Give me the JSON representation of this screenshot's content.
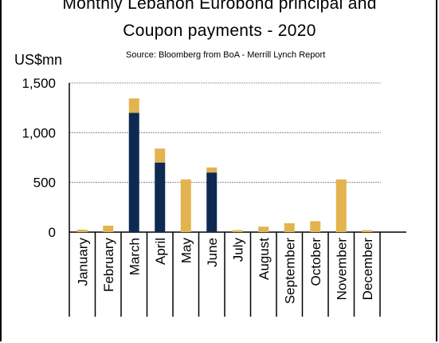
{
  "title": [
    "Monthly Lebanon Eurobond principal and",
    "Coupon  payments - 2020"
  ],
  "source": "Source: Bloomberg  from BoA - Merrill Lynch Report",
  "colors": {
    "principal": "#0e2a52",
    "coupon": "#e3b34f",
    "grid": "#777777"
  },
  "chart_data": {
    "type": "bar",
    "stacked": true,
    "ylabel": "US$mn",
    "ylim": [
      0,
      1500
    ],
    "yticks": [
      0,
      500,
      1000,
      1500
    ],
    "ytick_labels": [
      "0",
      "500",
      "1,000",
      "1,500"
    ],
    "grid": true,
    "categories": [
      "January",
      "February",
      "March",
      "April",
      "May",
      "June",
      "July",
      "August",
      "September",
      "October",
      "November",
      "December"
    ],
    "series": [
      {
        "values": [
          0,
          0,
          1200,
          700,
          0,
          600,
          0,
          0,
          0,
          0,
          0,
          0
        ]
      },
      {
        "values": [
          25,
          65,
          145,
          140,
          530,
          50,
          20,
          55,
          90,
          110,
          530,
          20
        ]
      }
    ]
  }
}
